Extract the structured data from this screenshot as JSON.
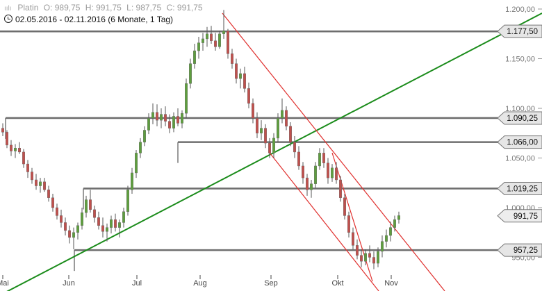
{
  "header": {
    "instrument": "Platin",
    "ohlc": {
      "open": "O: 989,75",
      "high": "H: 991,75",
      "low": "L: 987,75",
      "close": "C: 991,75"
    },
    "range": "02.05.2016 - 02.11.2016 (6 Monate, 1 Tag)"
  },
  "chart_data": {
    "type": "candlestick",
    "title": "",
    "x_labels": [
      "Mai",
      "Jun",
      "Jul",
      "Aug",
      "Sep",
      "Okt",
      "Nov"
    ],
    "y_ticks": [
      "1.200,00",
      "1.150,00",
      "1.100,00",
      "1.050,00",
      "1.000,00",
      "950,00"
    ],
    "ylim": [
      937,
      1206
    ],
    "grid": false,
    "colors": {
      "up": "#5e9e3e",
      "down": "#c0504d",
      "level": "#6e6e6e",
      "trend": "#1b8c1b",
      "channel": "#e0312f"
    },
    "price_levels": [
      {
        "label": "1.177,50",
        "value": 1177.5
      },
      {
        "label": "1.090,25",
        "value": 1090.25
      },
      {
        "label": "1.066,00",
        "value": 1066.0
      },
      {
        "label": "1.019,25",
        "value": 1019.25
      },
      {
        "label": "957,25",
        "value": 957.25
      }
    ],
    "current_price": {
      "label": "991,75",
      "value": 991.75
    },
    "candles": [
      [
        1080,
        1085,
        1072,
        1076
      ],
      [
        1076,
        1078,
        1060,
        1063
      ],
      [
        1063,
        1068,
        1052,
        1057
      ],
      [
        1057,
        1064,
        1050,
        1060
      ],
      [
        1060,
        1066,
        1054,
        1056
      ],
      [
        1056,
        1059,
        1040,
        1044
      ],
      [
        1044,
        1048,
        1030,
        1036
      ],
      [
        1036,
        1040,
        1024,
        1028
      ],
      [
        1028,
        1034,
        1018,
        1022
      ],
      [
        1022,
        1030,
        1015,
        1026
      ],
      [
        1026,
        1030,
        1016,
        1018
      ],
      [
        1018,
        1022,
        1006,
        1010
      ],
      [
        1010,
        1014,
        996,
        1000
      ],
      [
        1000,
        1004,
        988,
        992
      ],
      [
        992,
        998,
        980,
        985
      ],
      [
        985,
        990,
        972,
        977
      ],
      [
        977,
        982,
        964,
        970
      ],
      [
        970,
        980,
        958,
        975
      ],
      [
        975,
        985,
        968,
        982
      ],
      [
        982,
        1000,
        978,
        995
      ],
      [
        995,
        1012,
        990,
        1008
      ],
      [
        1008,
        1018,
        995,
        998
      ],
      [
        998,
        1002,
        985,
        990
      ],
      [
        990,
        996,
        978,
        982
      ],
      [
        982,
        990,
        970,
        976
      ],
      [
        976,
        984,
        966,
        980
      ],
      [
        980,
        992,
        974,
        988
      ],
      [
        988,
        994,
        976,
        980
      ],
      [
        980,
        988,
        970,
        985
      ],
      [
        985,
        1000,
        980,
        996
      ],
      [
        996,
        1022,
        992,
        1018
      ],
      [
        1018,
        1040,
        1014,
        1035
      ],
      [
        1035,
        1058,
        1030,
        1055
      ],
      [
        1055,
        1070,
        1050,
        1066
      ],
      [
        1066,
        1082,
        1062,
        1078
      ],
      [
        1078,
        1095,
        1074,
        1090
      ],
      [
        1090,
        1105,
        1084,
        1096
      ],
      [
        1096,
        1104,
        1082,
        1088
      ],
      [
        1088,
        1100,
        1080,
        1094
      ],
      [
        1094,
        1102,
        1082,
        1087
      ],
      [
        1087,
        1094,
        1075,
        1080
      ],
      [
        1080,
        1096,
        1076,
        1092
      ],
      [
        1092,
        1100,
        1082,
        1085
      ],
      [
        1085,
        1098,
        1080,
        1095
      ],
      [
        1095,
        1130,
        1090,
        1125
      ],
      [
        1125,
        1150,
        1120,
        1145
      ],
      [
        1145,
        1165,
        1140,
        1158
      ],
      [
        1158,
        1172,
        1150,
        1166
      ],
      [
        1166,
        1176,
        1158,
        1170
      ],
      [
        1170,
        1182,
        1162,
        1175
      ],
      [
        1175,
        1183,
        1165,
        1168
      ],
      [
        1168,
        1176,
        1158,
        1162
      ],
      [
        1162,
        1178,
        1160,
        1175
      ],
      [
        1175,
        1199,
        1170,
        1178
      ],
      [
        1178,
        1180,
        1150,
        1155
      ],
      [
        1155,
        1160,
        1140,
        1145
      ],
      [
        1145,
        1150,
        1125,
        1130
      ],
      [
        1130,
        1140,
        1120,
        1135
      ],
      [
        1135,
        1142,
        1116,
        1120
      ],
      [
        1120,
        1126,
        1100,
        1105
      ],
      [
        1105,
        1110,
        1085,
        1090
      ],
      [
        1090,
        1096,
        1070,
        1075
      ],
      [
        1075,
        1088,
        1068,
        1080
      ],
      [
        1080,
        1084,
        1060,
        1065
      ],
      [
        1065,
        1070,
        1050,
        1055
      ],
      [
        1055,
        1075,
        1050,
        1070
      ],
      [
        1070,
        1095,
        1066,
        1090
      ],
      [
        1090,
        1110,
        1085,
        1098
      ],
      [
        1098,
        1102,
        1078,
        1082
      ],
      [
        1082,
        1086,
        1062,
        1066
      ],
      [
        1066,
        1072,
        1050,
        1056
      ],
      [
        1056,
        1062,
        1038,
        1042
      ],
      [
        1042,
        1046,
        1024,
        1030
      ],
      [
        1030,
        1034,
        1012,
        1018
      ],
      [
        1018,
        1028,
        1010,
        1024
      ],
      [
        1024,
        1046,
        1020,
        1042
      ],
      [
        1042,
        1060,
        1038,
        1055
      ],
      [
        1055,
        1060,
        1040,
        1045
      ],
      [
        1045,
        1050,
        1024,
        1030
      ],
      [
        1030,
        1044,
        1026,
        1040
      ],
      [
        1040,
        1046,
        1024,
        1028
      ],
      [
        1028,
        1032,
        1006,
        1010
      ],
      [
        1010,
        1014,
        988,
        992
      ],
      [
        992,
        996,
        970,
        975
      ],
      [
        975,
        980,
        958,
        962
      ],
      [
        962,
        968,
        948,
        952
      ],
      [
        952,
        958,
        940,
        946
      ],
      [
        946,
        958,
        942,
        954
      ],
      [
        954,
        962,
        945,
        950
      ],
      [
        950,
        956,
        938,
        944
      ],
      [
        944,
        960,
        940,
        956
      ],
      [
        956,
        972,
        950,
        966
      ],
      [
        966,
        978,
        960,
        972
      ],
      [
        972,
        986,
        966,
        980
      ],
      [
        980,
        992,
        976,
        988
      ],
      [
        988,
        996,
        984,
        992
      ]
    ]
  }
}
